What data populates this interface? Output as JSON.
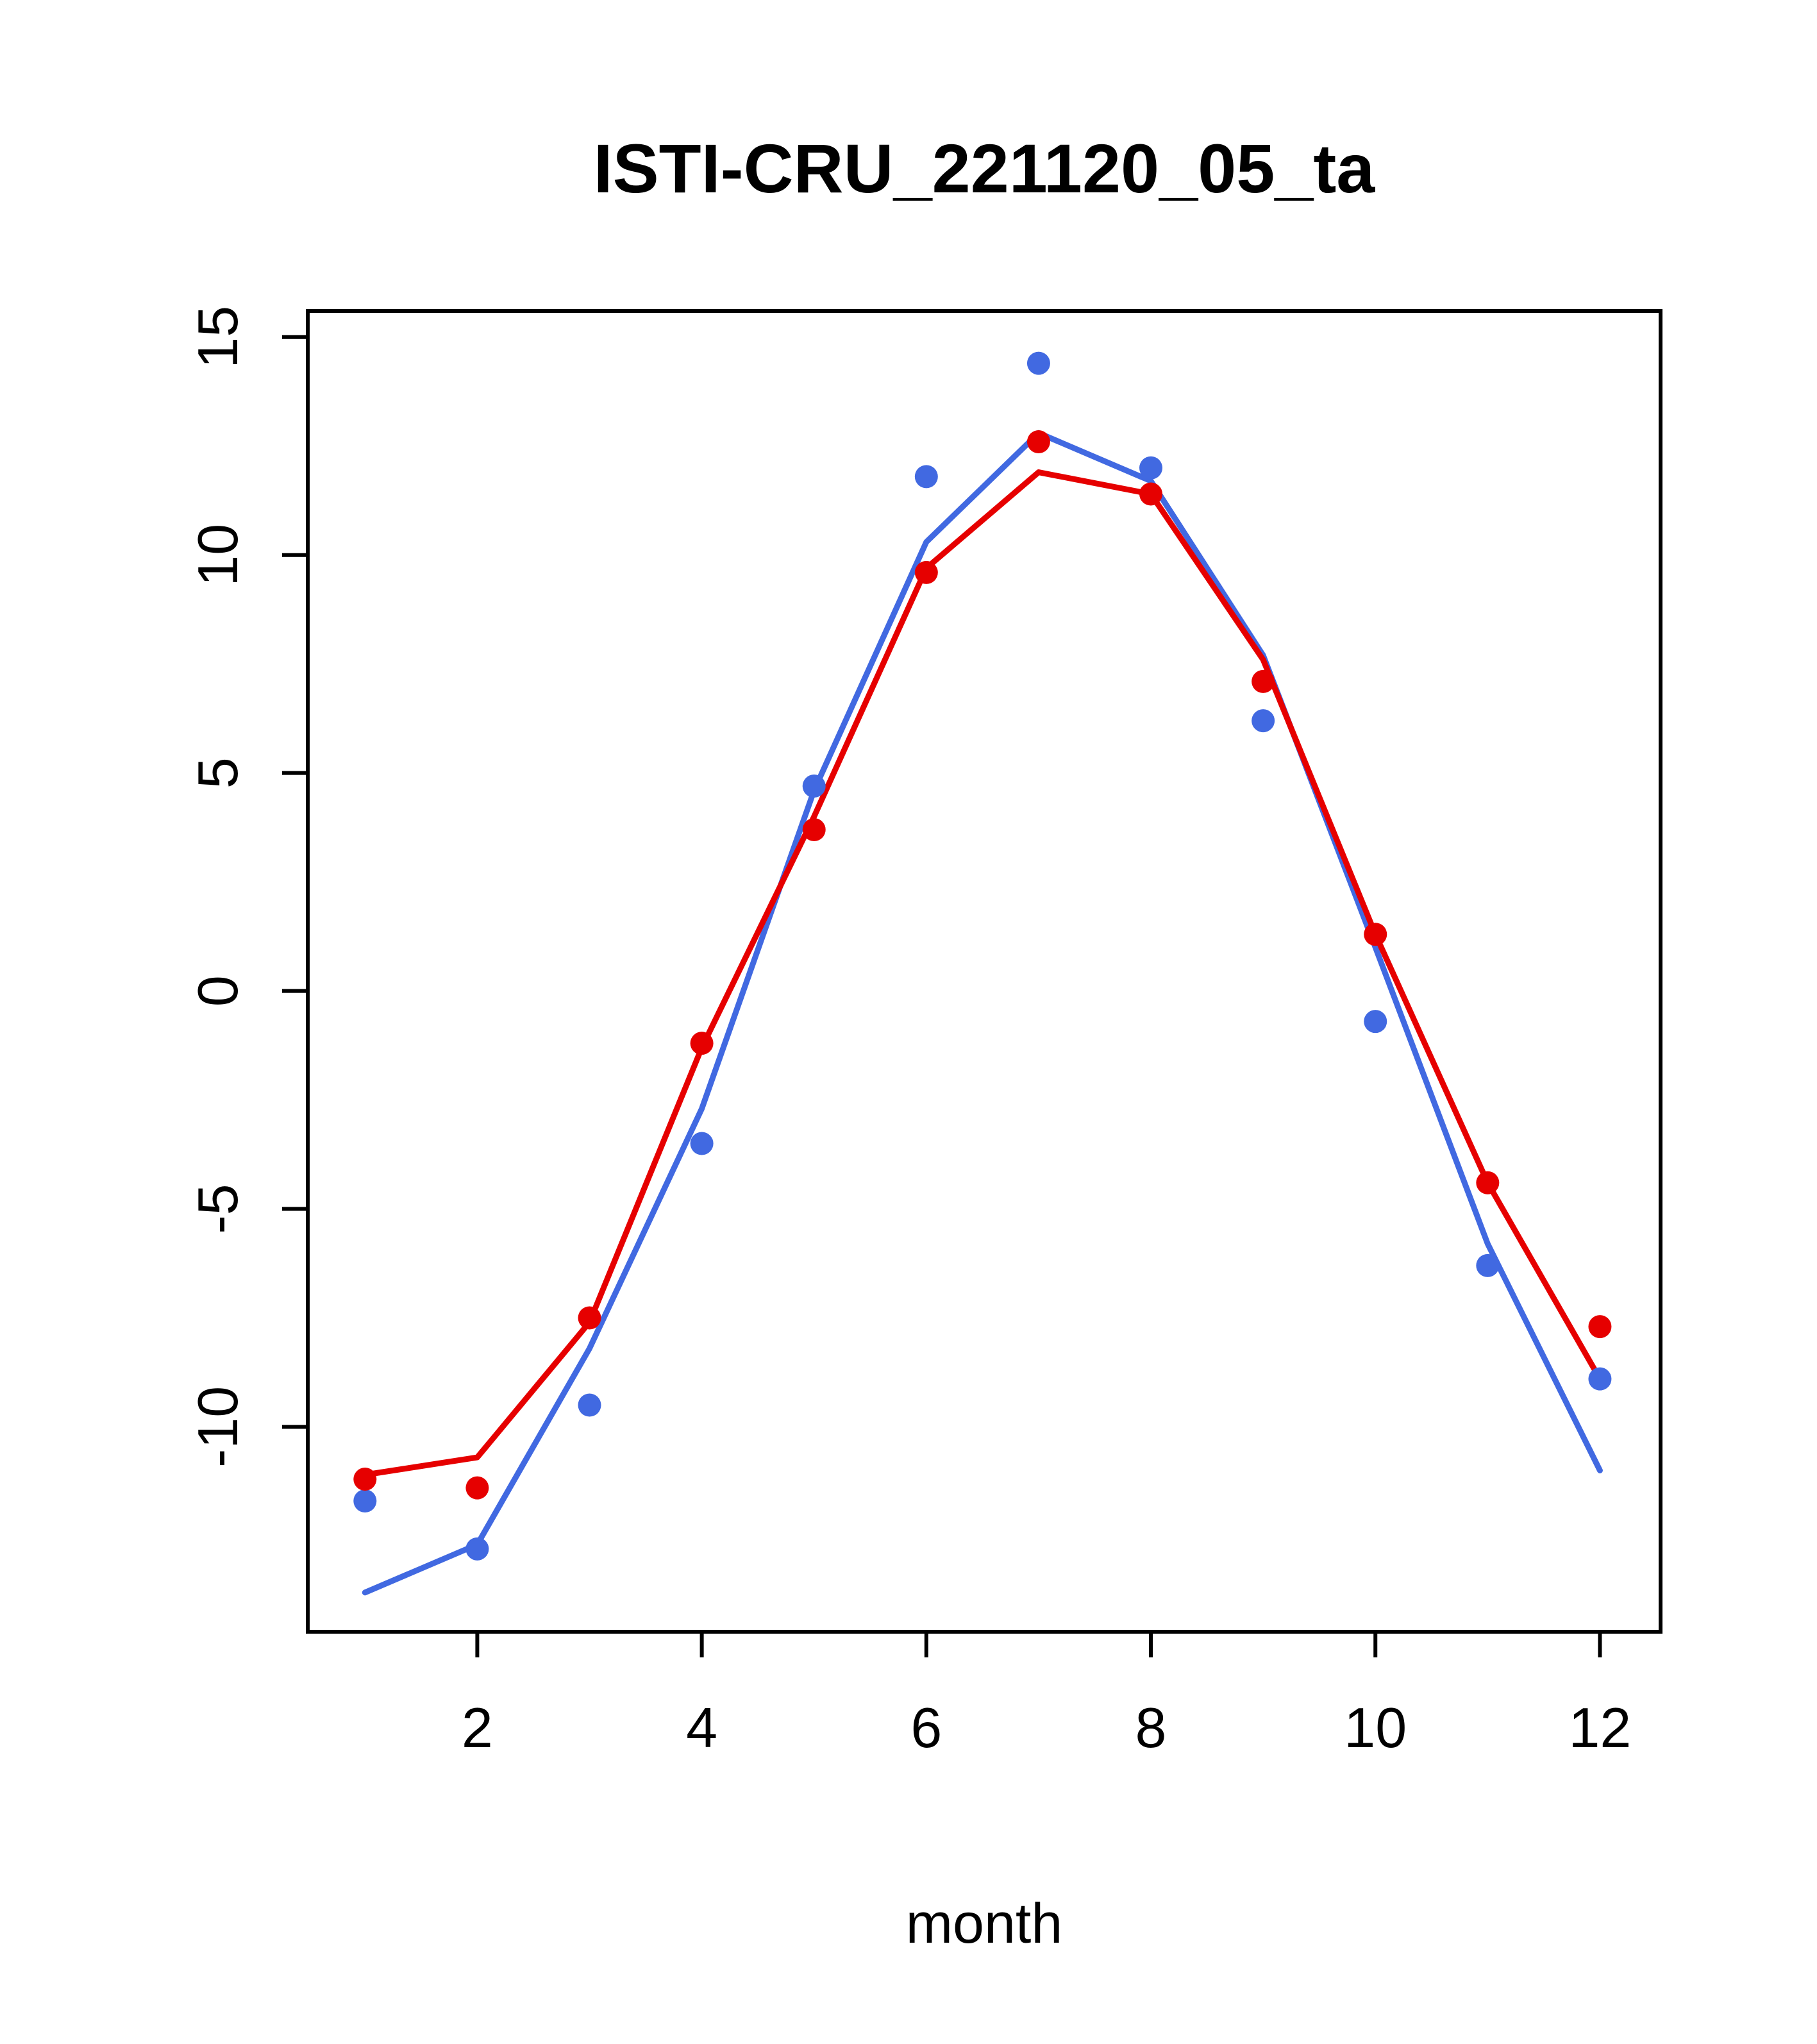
{
  "chart_data": {
    "type": "line",
    "title": "ISTI-CRU_221120_05_ta",
    "xlabel": "month",
    "ylabel": "",
    "x": [
      1,
      2,
      3,
      4,
      5,
      6,
      7,
      8,
      9,
      10,
      11,
      12
    ],
    "xlim": [
      0.49,
      12.54
    ],
    "ylim": [
      -14.7,
      15.6
    ],
    "xticks": [
      2,
      4,
      6,
      8,
      10,
      12
    ],
    "yticks": [
      -10,
      -5,
      0,
      5,
      10,
      15
    ],
    "grid": false,
    "legend": "none",
    "frame": true,
    "colors": {
      "red": "#e60000",
      "blue": "#4169e1",
      "axis": "#000000"
    },
    "series": [
      {
        "name": "blue-line",
        "kind": "line",
        "color": "#4169e1",
        "values": [
          -13.8,
          -12.7,
          -8.2,
          -2.7,
          4.6,
          10.3,
          12.8,
          11.7,
          7.7,
          1.0,
          -5.8,
          -11.0
        ]
      },
      {
        "name": "red-line",
        "kind": "line",
        "color": "#e60000",
        "values": [
          -11.1,
          -10.7,
          -7.6,
          -1.3,
          4.0,
          9.7,
          11.9,
          11.4,
          7.6,
          1.3,
          -4.4,
          -8.9
        ]
      },
      {
        "name": "blue-points",
        "kind": "scatter",
        "color": "#4169e1",
        "values": [
          -11.7,
          -12.8,
          -9.5,
          -3.5,
          4.7,
          11.8,
          14.4,
          12.0,
          6.2,
          -0.7,
          -6.3,
          -8.9
        ]
      },
      {
        "name": "red-points",
        "kind": "scatter",
        "color": "#e60000",
        "values": [
          -11.2,
          -11.4,
          -7.5,
          -1.2,
          3.7,
          9.6,
          12.6,
          11.4,
          7.1,
          1.3,
          -4.4,
          -7.7
        ]
      }
    ]
  }
}
